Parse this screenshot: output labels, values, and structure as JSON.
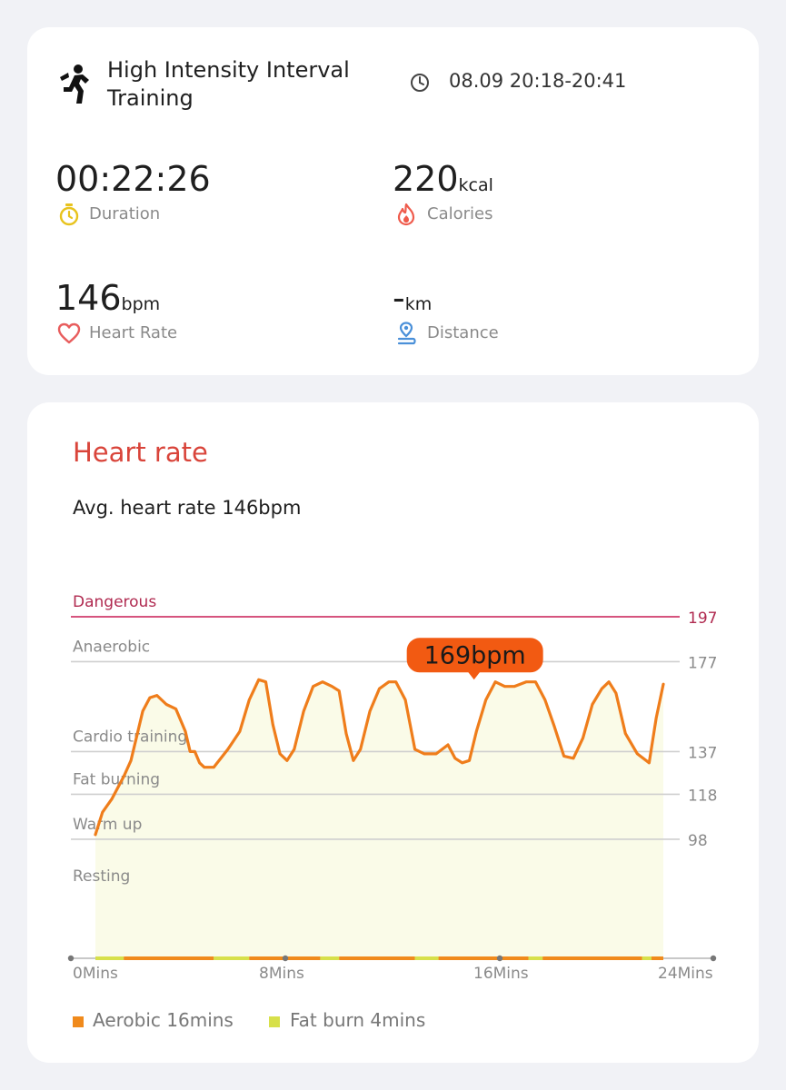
{
  "workout": {
    "title": "High Intensity Interval Training",
    "time_range": "08.09 20:18-20:41",
    "icons": {
      "activity": "running-person-icon",
      "clock": "clock-icon"
    }
  },
  "metrics": {
    "duration": {
      "value": "00:22:26",
      "unit": "",
      "label": "Duration",
      "icon": "stopwatch-icon",
      "color": "#e8c31d"
    },
    "calories": {
      "value": "220",
      "unit": "kcal",
      "label": "Calories",
      "icon": "flame-icon",
      "color": "#ef5b4c"
    },
    "heart_rate": {
      "value": "146",
      "unit": "bpm",
      "label": "Heart Rate",
      "icon": "heart-icon",
      "color": "#e85d5d"
    },
    "distance": {
      "value": "-",
      "unit": "km",
      "label": "Distance",
      "icon": "location-pin-icon",
      "color": "#4a90d9"
    }
  },
  "heart_rate_section": {
    "title": "Heart rate",
    "avg_label": "Avg. heart rate ",
    "avg_value": "146bpm"
  },
  "chart_data": {
    "type": "line",
    "x": [
      0,
      0.3,
      0.7,
      1.2,
      1.5,
      2,
      2.3,
      2.6,
      3,
      3.4,
      3.8,
      4,
      4.2,
      4.4,
      4.6,
      5,
      5.6,
      6.1,
      6.5,
      6.9,
      7.2,
      7.5,
      7.8,
      8.1,
      8.4,
      8.8,
      9.2,
      9.6,
      10,
      10.3,
      10.6,
      10.9,
      11.2,
      11.6,
      12,
      12.4,
      12.7,
      13.1,
      13.5,
      13.9,
      14.4,
      14.9,
      15.2,
      15.5,
      15.8,
      16.1,
      16.5,
      16.9,
      17.3,
      17.7,
      18.2,
      18.6,
      19,
      19.4,
      19.8,
      20.2,
      20.6,
      21,
      21.4,
      21.7,
      22,
      22.4,
      22.9,
      23.4,
      23.7,
      24
    ],
    "y": [
      100,
      110,
      116,
      126,
      133,
      155,
      161,
      162,
      158,
      156,
      146,
      137,
      137,
      132,
      130,
      130,
      138,
      146,
      160,
      169,
      168,
      149,
      136,
      133,
      138,
      155,
      166,
      168,
      166,
      164,
      145,
      133,
      138,
      155,
      165,
      168,
      168,
      160,
      138,
      136,
      136,
      140,
      134,
      132,
      133,
      146,
      160,
      168,
      166,
      166,
      168,
      168,
      160,
      148,
      135,
      134,
      143,
      158,
      165,
      168,
      163,
      145,
      136,
      132,
      152,
      167
    ],
    "x_range": [
      0,
      24
    ],
    "y_range": [
      45,
      197
    ],
    "x_ticks": [
      0,
      8,
      16,
      24
    ],
    "x_tick_labels": [
      "0Mins",
      "8Mins",
      "16Mins",
      "24Mins"
    ],
    "y_ticks": [
      197,
      177,
      137,
      118,
      98
    ],
    "zones": [
      {
        "name": "Dangerous",
        "threshold": 197,
        "color": "#d6547e"
      },
      {
        "name": "Anaerobic",
        "threshold": 177,
        "color": "#cfcfcf"
      },
      {
        "name": "Cardio training",
        "threshold": 137,
        "color": "#cfcfcf"
      },
      {
        "name": "Fat burning",
        "threshold": 118,
        "color": "#cfcfcf"
      },
      {
        "name": "Warm up",
        "threshold": 98,
        "color": "#cfcfcf"
      },
      {
        "name": "Resting",
        "threshold": 45,
        "color": "#cfcfcf"
      }
    ],
    "annotation": {
      "label": "169bpm",
      "x": 16,
      "y": 169,
      "color": "#f25a12"
    },
    "line_color": "#ef7d1b",
    "fill_color": "#fafbe8",
    "zone_bar": [
      {
        "start": 0,
        "end": 1.2,
        "zone": "fat_burn"
      },
      {
        "start": 1.2,
        "end": 5,
        "zone": "aerobic"
      },
      {
        "start": 5,
        "end": 6.5,
        "zone": "fat_burn"
      },
      {
        "start": 6.5,
        "end": 9.5,
        "zone": "aerobic"
      },
      {
        "start": 9.5,
        "end": 10.3,
        "zone": "fat_burn"
      },
      {
        "start": 10.3,
        "end": 13.5,
        "zone": "aerobic"
      },
      {
        "start": 13.5,
        "end": 14.5,
        "zone": "fat_burn"
      },
      {
        "start": 14.5,
        "end": 18.3,
        "zone": "aerobic"
      },
      {
        "start": 18.3,
        "end": 18.9,
        "zone": "fat_burn"
      },
      {
        "start": 18.9,
        "end": 23.1,
        "zone": "aerobic"
      },
      {
        "start": 23.1,
        "end": 23.5,
        "zone": "fat_burn"
      },
      {
        "start": 23.5,
        "end": 24,
        "zone": "aerobic"
      }
    ],
    "legend": [
      {
        "name": "Aerobic",
        "value": "16mins",
        "color": "#f08a1c"
      },
      {
        "name": "Fat burn",
        "value": "4mins",
        "color": "#d7e04a"
      }
    ]
  }
}
